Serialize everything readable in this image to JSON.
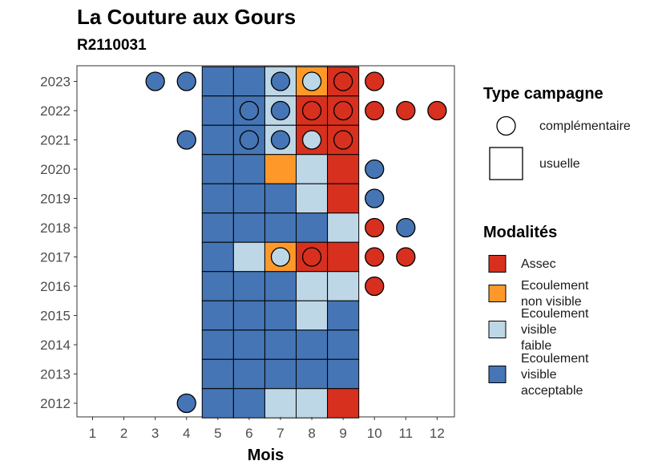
{
  "title": "La Couture aux Gours",
  "subtitle": "R2110031",
  "chart_data": {
    "type": "heatmap",
    "title": "La Couture aux Gours",
    "subtitle": "R2110031",
    "xlabel": "Mois",
    "ylabel": "",
    "x": [
      1,
      2,
      3,
      4,
      5,
      6,
      7,
      8,
      9,
      10,
      11,
      12
    ],
    "y": [
      2012,
      2013,
      2014,
      2015,
      2016,
      2017,
      2018,
      2019,
      2020,
      2021,
      2022,
      2023
    ],
    "grid": false,
    "legend_placement": "right",
    "colors": {
      "Assec": "#d7301f",
      "Ecoulement non visible": "#fe9929",
      "Ecoulement visible faible": "#bdd7e7",
      "Ecoulement visible acceptable": "#4575b4"
    },
    "legend_shape": {
      "title": "Type campagne",
      "entries": [
        {
          "label": "complémentaire",
          "shape": "circle"
        },
        {
          "label": "usuelle",
          "shape": "square"
        }
      ]
    },
    "legend_fill": {
      "title": "Modalités",
      "entries": [
        {
          "key": "Assec",
          "lines": [
            "Assec"
          ]
        },
        {
          "key": "Ecoulement non visible",
          "lines": [
            "Ecoulement",
            "non visible"
          ]
        },
        {
          "key": "Ecoulement visible faible",
          "lines": [
            "Ecoulement",
            "visible",
            "faible"
          ]
        },
        {
          "key": "Ecoulement visible acceptable",
          "lines": [
            "Ecoulement",
            "visible",
            "acceptable"
          ]
        }
      ]
    },
    "usuelle": [
      {
        "year": 2023,
        "values": {
          "5": "Ecoulement visible acceptable",
          "6": "Ecoulement visible acceptable",
          "7": "Ecoulement visible faible",
          "8": "Ecoulement non visible",
          "9": "Assec"
        }
      },
      {
        "year": 2022,
        "values": {
          "5": "Ecoulement visible acceptable",
          "6": "Ecoulement visible acceptable",
          "7": "Ecoulement visible faible",
          "8": "Assec",
          "9": "Assec"
        }
      },
      {
        "year": 2021,
        "values": {
          "5": "Ecoulement visible acceptable",
          "6": "Ecoulement visible acceptable",
          "7": "Ecoulement visible faible",
          "8": "Assec",
          "9": "Assec"
        }
      },
      {
        "year": 2020,
        "values": {
          "5": "Ecoulement visible acceptable",
          "6": "Ecoulement visible acceptable",
          "7": "Ecoulement non visible",
          "8": "Ecoulement visible faible",
          "9": "Assec"
        }
      },
      {
        "year": 2019,
        "values": {
          "5": "Ecoulement visible acceptable",
          "6": "Ecoulement visible acceptable",
          "7": "Ecoulement visible acceptable",
          "8": "Ecoulement visible faible",
          "9": "Assec"
        }
      },
      {
        "year": 2018,
        "values": {
          "5": "Ecoulement visible acceptable",
          "6": "Ecoulement visible acceptable",
          "7": "Ecoulement visible acceptable",
          "8": "Ecoulement visible acceptable",
          "9": "Ecoulement visible faible"
        }
      },
      {
        "year": 2017,
        "values": {
          "5": "Ecoulement visible acceptable",
          "6": "Ecoulement visible faible",
          "7": "Ecoulement non visible",
          "8": "Assec",
          "9": "Assec"
        }
      },
      {
        "year": 2016,
        "values": {
          "5": "Ecoulement visible acceptable",
          "6": "Ecoulement visible acceptable",
          "7": "Ecoulement visible acceptable",
          "8": "Ecoulement visible faible",
          "9": "Ecoulement visible faible"
        }
      },
      {
        "year": 2015,
        "values": {
          "5": "Ecoulement visible acceptable",
          "6": "Ecoulement visible acceptable",
          "7": "Ecoulement visible acceptable",
          "8": "Ecoulement visible faible",
          "9": "Ecoulement visible acceptable"
        }
      },
      {
        "year": 2014,
        "values": {
          "5": "Ecoulement visible acceptable",
          "6": "Ecoulement visible acceptable",
          "7": "Ecoulement visible acceptable",
          "8": "Ecoulement visible acceptable",
          "9": "Ecoulement visible acceptable"
        }
      },
      {
        "year": 2013,
        "values": {
          "5": "Ecoulement visible acceptable",
          "6": "Ecoulement visible acceptable",
          "7": "Ecoulement visible acceptable",
          "8": "Ecoulement visible acceptable",
          "9": "Ecoulement visible acceptable"
        }
      },
      {
        "year": 2012,
        "values": {
          "5": "Ecoulement visible acceptable",
          "6": "Ecoulement visible acceptable",
          "7": "Ecoulement visible faible",
          "8": "Ecoulement visible faible",
          "9": "Assec"
        }
      }
    ],
    "complementaire": [
      {
        "year": 2023,
        "month": 3,
        "value": "Ecoulement visible acceptable"
      },
      {
        "year": 2023,
        "month": 4,
        "value": "Ecoulement visible acceptable"
      },
      {
        "year": 2023,
        "month": 7,
        "value": "Ecoulement visible acceptable"
      },
      {
        "year": 2023,
        "month": 8,
        "value": "Ecoulement visible faible"
      },
      {
        "year": 2023,
        "month": 9,
        "value": "Assec"
      },
      {
        "year": 2023,
        "month": 10,
        "value": "Assec"
      },
      {
        "year": 2022,
        "month": 6,
        "value": "Ecoulement visible acceptable"
      },
      {
        "year": 2022,
        "month": 7,
        "value": "Ecoulement visible acceptable"
      },
      {
        "year": 2022,
        "month": 8,
        "value": "Assec"
      },
      {
        "year": 2022,
        "month": 9,
        "value": "Assec"
      },
      {
        "year": 2022,
        "month": 10,
        "value": "Assec"
      },
      {
        "year": 2022,
        "month": 11,
        "value": "Assec"
      },
      {
        "year": 2022,
        "month": 12,
        "value": "Assec"
      },
      {
        "year": 2021,
        "month": 4,
        "value": "Ecoulement visible acceptable"
      },
      {
        "year": 2021,
        "month": 6,
        "value": "Ecoulement visible acceptable"
      },
      {
        "year": 2021,
        "month": 7,
        "value": "Ecoulement visible acceptable"
      },
      {
        "year": 2021,
        "month": 8,
        "value": "Ecoulement visible faible"
      },
      {
        "year": 2021,
        "month": 9,
        "value": "Assec"
      },
      {
        "year": 2020,
        "month": 10,
        "value": "Ecoulement visible acceptable"
      },
      {
        "year": 2019,
        "month": 10,
        "value": "Ecoulement visible acceptable"
      },
      {
        "year": 2018,
        "month": 10,
        "value": "Assec"
      },
      {
        "year": 2018,
        "month": 11,
        "value": "Ecoulement visible acceptable"
      },
      {
        "year": 2017,
        "month": 7,
        "value": "Ecoulement visible faible"
      },
      {
        "year": 2017,
        "month": 8,
        "value": "Assec"
      },
      {
        "year": 2017,
        "month": 10,
        "value": "Assec"
      },
      {
        "year": 2017,
        "month": 11,
        "value": "Assec"
      },
      {
        "year": 2016,
        "month": 10,
        "value": "Assec"
      },
      {
        "year": 2012,
        "month": 4,
        "value": "Ecoulement visible acceptable"
      }
    ]
  }
}
